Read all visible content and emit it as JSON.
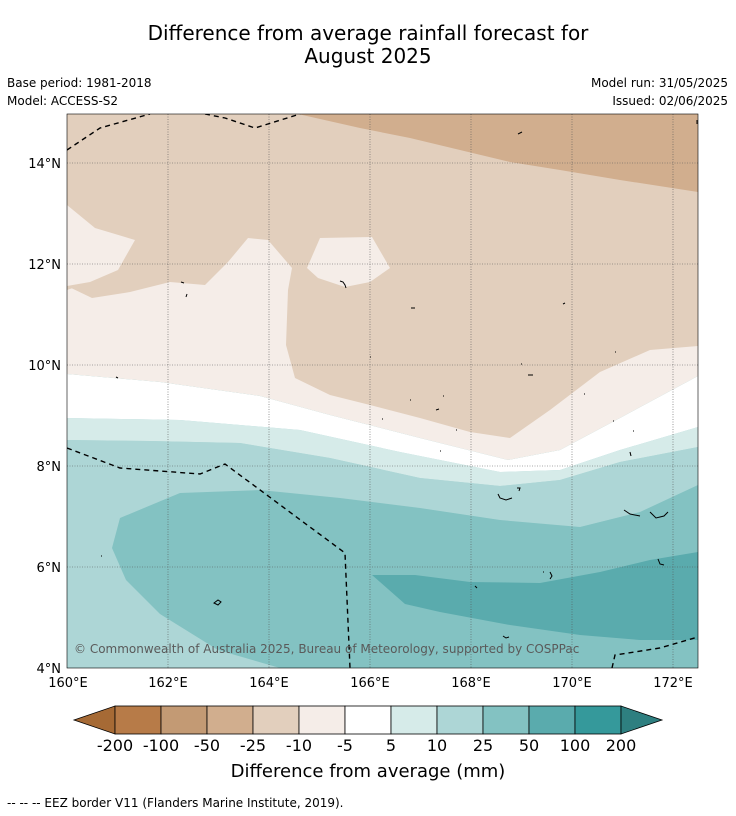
{
  "header": {
    "title_line1": "Difference from average rainfall forecast for",
    "title_line2": "August 2025",
    "base_period": "Base period: 1981-2018",
    "model": "Model: ACCESS-S2",
    "model_run": "Model run: 31/05/2025",
    "issued": "Issued: 02/06/2025"
  },
  "map": {
    "lat_ticks": [
      "4°N",
      "6°N",
      "8°N",
      "10°N",
      "12°N",
      "14°N"
    ],
    "lon_ticks": [
      "160°E",
      "162°E",
      "164°E",
      "166°E",
      "168°E",
      "170°E",
      "172°E"
    ],
    "lat_range": [
      4,
      15
    ],
    "lon_range": [
      160,
      172.5
    ],
    "attribution": "© Commonwealth of Australia 2025, Bureau of Meteorology, supported by COSPPac",
    "colors": {
      "neg200": "#a66a35",
      "neg100": "#b77b48",
      "neg50": "#d1ae8e",
      "neg25": "#e2cfbd",
      "neg10": "#f5ede8",
      "neutral": "#ffffff",
      "pos5": "#d6ebe9",
      "pos10": "#add6d6",
      "pos25": "#83c2c2",
      "pos50": "#5aabad",
      "pos100": "#35999b",
      "pos200": "#2e7f80"
    }
  },
  "colorbar": {
    "title": "Difference from average (mm)",
    "tick_labels": [
      "-200",
      "-100",
      "-50",
      "-25",
      "-10",
      "-5",
      "5",
      "10",
      "25",
      "50",
      "100",
      "200"
    ],
    "swatches": [
      "#b77b48",
      "#c39a74",
      "#d1ae8e",
      "#e2cfbd",
      "#f5ede8",
      "#ffffff",
      "#d6ebe9",
      "#add6d6",
      "#83c2c2",
      "#5aabad",
      "#35999b"
    ],
    "left_arrow_color": "#a66a35",
    "right_arrow_color": "#2e7f80"
  },
  "footer": {
    "legend_text": "--  --  -- EEZ border V11 (Flanders Marine Institute, 2019)."
  }
}
